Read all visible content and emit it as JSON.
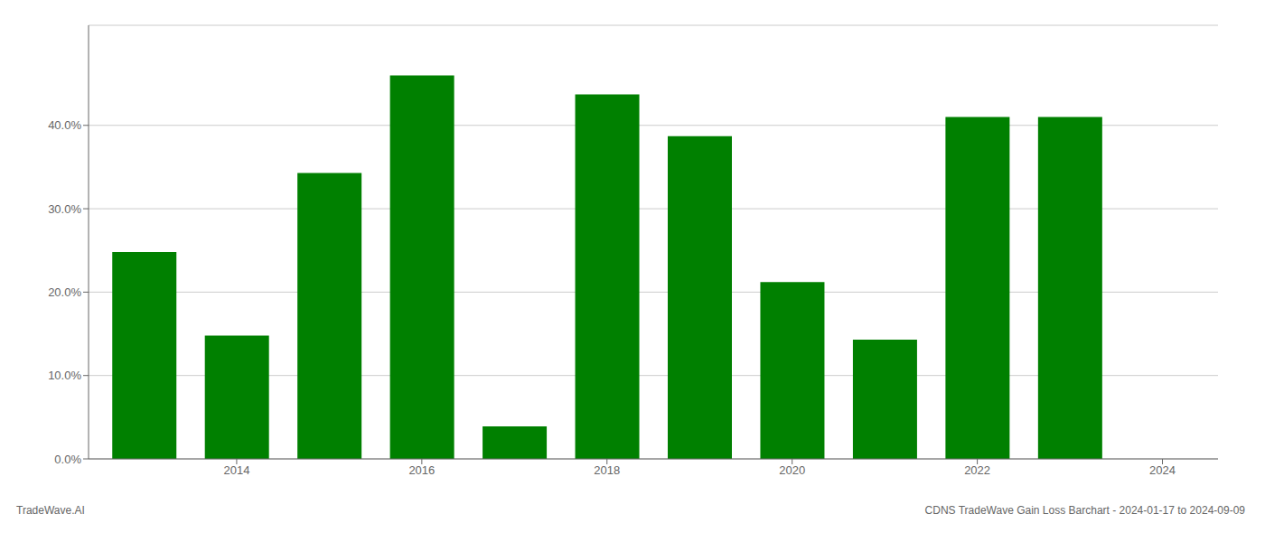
{
  "chart_data": {
    "type": "bar",
    "x": [
      2013,
      2014,
      2015,
      2016,
      2017,
      2018,
      2019,
      2020,
      2021,
      2022,
      2023
    ],
    "values": [
      0.248,
      0.148,
      0.343,
      0.46,
      0.039,
      0.437,
      0.387,
      0.212,
      0.143,
      0.41,
      0.41
    ],
    "color": "#008000",
    "xlim": [
      2012.4,
      2024.6
    ],
    "xticks": [
      2014,
      2016,
      2018,
      2020,
      2022,
      2024
    ],
    "ylim": [
      0.0,
      0.52
    ],
    "yticks": [
      {
        "value": 0.0,
        "label": "0.0%"
      },
      {
        "value": 0.1,
        "label": "10.0%"
      },
      {
        "value": 0.2,
        "label": "20.0%"
      },
      {
        "value": 0.3,
        "label": "30.0%"
      },
      {
        "value": 0.4,
        "label": "40.0%"
      }
    ],
    "grid": true,
    "annotations": [
      "TradeWave.AI",
      "CDNS TradeWave Gain Loss Barchart - 2024-01-17 to 2024-09-09"
    ]
  }
}
